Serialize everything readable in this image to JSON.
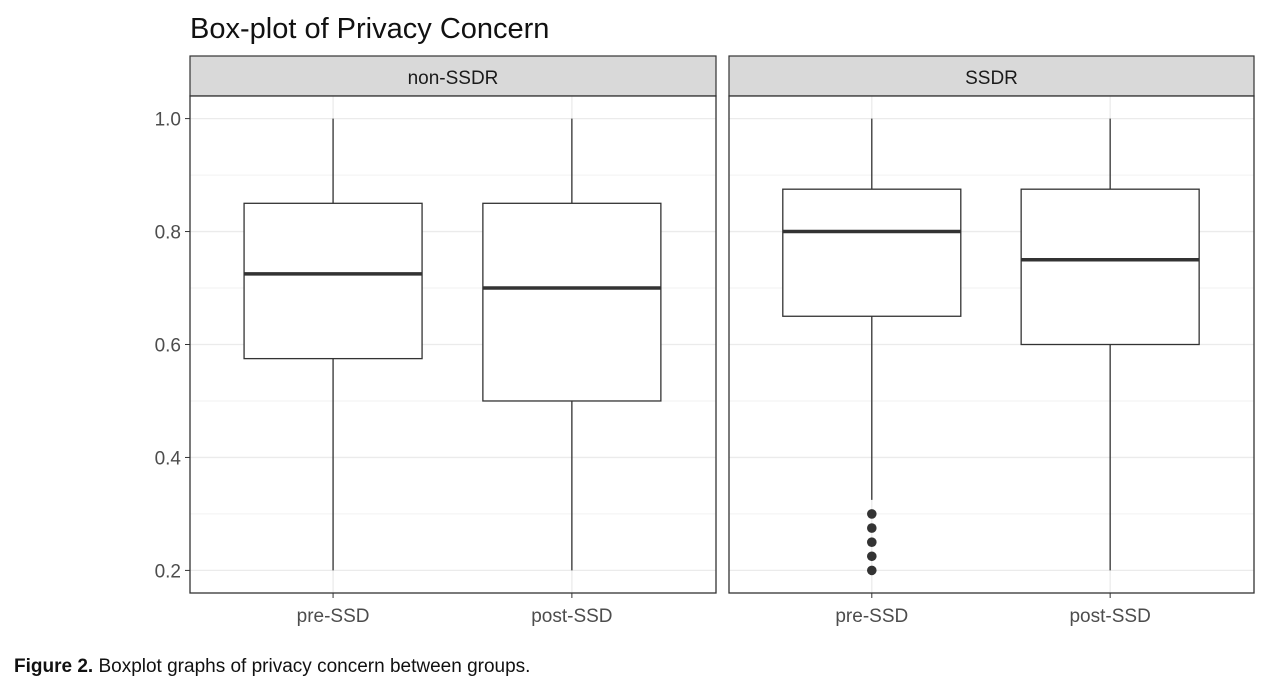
{
  "chart_data": {
    "type": "boxplot",
    "title": "Box-plot of Privacy Concern",
    "ylabel": "",
    "xlabel": "",
    "ylim": [
      0.16,
      1.04
    ],
    "y_ticks": [
      "0.2",
      "0.4",
      "0.6",
      "0.8",
      "1.0"
    ],
    "y_tick_values": [
      0.2,
      0.4,
      0.6,
      0.8,
      1.0
    ],
    "grid": true,
    "categories": [
      "pre-SSD",
      "post-SSD"
    ],
    "panels": [
      {
        "name": "non-SSDR",
        "boxes": [
          {
            "category": "pre-SSD",
            "whisker_low": 0.2,
            "q1": 0.575,
            "median": 0.725,
            "q3": 0.85,
            "whisker_high": 1.0,
            "outliers": []
          },
          {
            "category": "post-SSD",
            "whisker_low": 0.2,
            "q1": 0.5,
            "median": 0.7,
            "q3": 0.85,
            "whisker_high": 1.0,
            "outliers": []
          }
        ]
      },
      {
        "name": "SSDR",
        "boxes": [
          {
            "category": "pre-SSD",
            "whisker_low": 0.325,
            "q1": 0.65,
            "median": 0.8,
            "q3": 0.875,
            "whisker_high": 1.0,
            "outliers": [
              0.2,
              0.225,
              0.25,
              0.275,
              0.3
            ]
          },
          {
            "category": "post-SSD",
            "whisker_low": 0.2,
            "q1": 0.6,
            "median": 0.75,
            "q3": 0.875,
            "whisker_high": 1.0,
            "outliers": []
          }
        ]
      }
    ],
    "colors": {
      "strip_fill": "#d9d9d9",
      "border": "#333333",
      "grid": "#ebebeb",
      "box_fill": "#ffffff",
      "text": "#4d4d4d"
    }
  },
  "caption": {
    "label": "Figure 2.",
    "text": " Boxplot graphs of privacy concern between groups."
  }
}
